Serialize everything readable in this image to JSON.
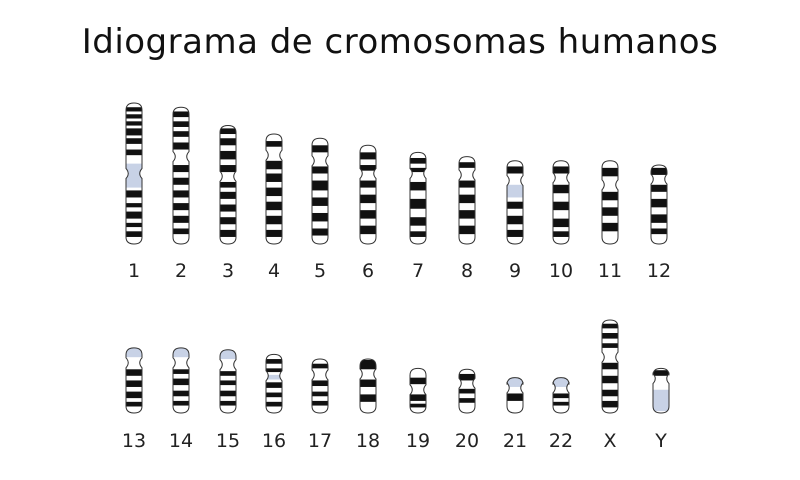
{
  "title": "Idiograma de cromosomas humanos",
  "colors": {
    "band_dark": "#111111",
    "band_light": "#ffffff",
    "centromere_or_stalk": "#c8d2e6",
    "outline": "#333333"
  },
  "chromosomes": [
    {
      "label": "1",
      "row": 0,
      "top": 0,
      "bottom": 1,
      "centromere": 0.5,
      "dark": [
        [
          0.03,
          0.06
        ],
        [
          0.08,
          0.11
        ],
        [
          0.13,
          0.16
        ],
        [
          0.18,
          0.23
        ],
        [
          0.25,
          0.29
        ],
        [
          0.33,
          0.37
        ],
        [
          0.62,
          0.67
        ],
        [
          0.71,
          0.74
        ],
        [
          0.77,
          0.82
        ],
        [
          0.85,
          0.88
        ],
        [
          0.91,
          0.95
        ]
      ],
      "gray": [
        [
          0.43,
          0.6
        ]
      ]
    },
    {
      "label": "2",
      "row": 0,
      "top": 0.03,
      "bottom": 1,
      "centromere": 0.38,
      "dark": [
        [
          0.06,
          0.1
        ],
        [
          0.13,
          0.17
        ],
        [
          0.2,
          0.24
        ],
        [
          0.28,
          0.33
        ],
        [
          0.44,
          0.49
        ],
        [
          0.53,
          0.58
        ],
        [
          0.62,
          0.67
        ],
        [
          0.71,
          0.76
        ],
        [
          0.8,
          0.85
        ],
        [
          0.89,
          0.93
        ]
      ],
      "gray": []
    },
    {
      "label": "3",
      "row": 0,
      "top": 0.16,
      "bottom": 1,
      "centromere": 0.52,
      "dark": [
        [
          0.18,
          0.22
        ],
        [
          0.25,
          0.3
        ],
        [
          0.34,
          0.4
        ],
        [
          0.44,
          0.49
        ],
        [
          0.56,
          0.6
        ],
        [
          0.63,
          0.68
        ],
        [
          0.72,
          0.77
        ],
        [
          0.81,
          0.86
        ],
        [
          0.9,
          0.95
        ]
      ],
      "gray": []
    },
    {
      "label": "4",
      "row": 0,
      "top": 0.22,
      "bottom": 1,
      "centromere": 0.37,
      "dark": [
        [
          0.27,
          0.31
        ],
        [
          0.41,
          0.47
        ],
        [
          0.5,
          0.56
        ],
        [
          0.6,
          0.66
        ],
        [
          0.7,
          0.76
        ],
        [
          0.8,
          0.86
        ],
        [
          0.9,
          0.95
        ]
      ],
      "gray": []
    },
    {
      "label": "5",
      "row": 0,
      "top": 0.25,
      "bottom": 1,
      "centromere": 0.41,
      "dark": [
        [
          0.3,
          0.35
        ],
        [
          0.45,
          0.5
        ],
        [
          0.55,
          0.62
        ],
        [
          0.67,
          0.73
        ],
        [
          0.78,
          0.84
        ],
        [
          0.89,
          0.94
        ]
      ],
      "gray": []
    },
    {
      "label": "6",
      "row": 0,
      "top": 0.3,
      "bottom": 1,
      "centromere": 0.5,
      "dark": [
        [
          0.35,
          0.4
        ],
        [
          0.44,
          0.48
        ],
        [
          0.55,
          0.6
        ],
        [
          0.65,
          0.71
        ],
        [
          0.76,
          0.82
        ],
        [
          0.87,
          0.93
        ]
      ],
      "gray": []
    },
    {
      "label": "7",
      "row": 0,
      "top": 0.35,
      "bottom": 1,
      "centromere": 0.5,
      "dark": [
        [
          0.39,
          0.43
        ],
        [
          0.46,
          0.49
        ],
        [
          0.56,
          0.62
        ],
        [
          0.68,
          0.75
        ],
        [
          0.81,
          0.87
        ],
        [
          0.91,
          0.95
        ]
      ],
      "gray": []
    },
    {
      "label": "8",
      "row": 0,
      "top": 0.38,
      "bottom": 1,
      "centromere": 0.51,
      "dark": [
        [
          0.42,
          0.46
        ],
        [
          0.55,
          0.6
        ],
        [
          0.65,
          0.71
        ],
        [
          0.76,
          0.82
        ],
        [
          0.87,
          0.93
        ]
      ],
      "gray": []
    },
    {
      "label": "9",
      "row": 0,
      "top": 0.41,
      "bottom": 1,
      "centromere": 0.55,
      "dark": [
        [
          0.45,
          0.5
        ],
        [
          0.7,
          0.75
        ],
        [
          0.8,
          0.86
        ],
        [
          0.9,
          0.95
        ]
      ],
      "gray": [
        [
          0.58,
          0.67
        ]
      ]
    },
    {
      "label": "10",
      "row": 0,
      "top": 0.41,
      "bottom": 1,
      "centromere": 0.53,
      "dark": [
        [
          0.45,
          0.5
        ],
        [
          0.58,
          0.64
        ],
        [
          0.7,
          0.76
        ],
        [
          0.82,
          0.88
        ],
        [
          0.91,
          0.95
        ]
      ],
      "gray": []
    },
    {
      "label": "11",
      "row": 0,
      "top": 0.41,
      "bottom": 1,
      "centromere": 0.58,
      "dark": [
        [
          0.46,
          0.52
        ],
        [
          0.63,
          0.69
        ],
        [
          0.74,
          0.8
        ],
        [
          0.85,
          0.91
        ]
      ],
      "gray": []
    },
    {
      "label": "12",
      "row": 0,
      "top": 0.44,
      "bottom": 1,
      "centromere": 0.54,
      "dark": [
        [
          0.46,
          0.51
        ],
        [
          0.58,
          0.63
        ],
        [
          0.68,
          0.74
        ],
        [
          0.79,
          0.85
        ],
        [
          0.89,
          0.93
        ]
      ],
      "gray": []
    },
    {
      "label": "13",
      "row": 1,
      "top": 0.3,
      "bottom": 1,
      "centromere": 0.46,
      "stalk": true,
      "dark": [
        [
          0.53,
          0.6
        ],
        [
          0.65,
          0.72
        ],
        [
          0.77,
          0.84
        ],
        [
          0.88,
          0.93
        ]
      ],
      "gray": [
        [
          0.3,
          0.4
        ]
      ]
    },
    {
      "label": "14",
      "row": 1,
      "top": 0.3,
      "bottom": 1,
      "centromere": 0.46,
      "stalk": true,
      "dark": [
        [
          0.53,
          0.58
        ],
        [
          0.63,
          0.7
        ],
        [
          0.76,
          0.82
        ],
        [
          0.87,
          0.92
        ]
      ],
      "gray": [
        [
          0.3,
          0.4
        ]
      ]
    },
    {
      "label": "15",
      "row": 1,
      "top": 0.32,
      "bottom": 1,
      "centromere": 0.48,
      "stalk": true,
      "dark": [
        [
          0.55,
          0.6
        ],
        [
          0.65,
          0.7
        ],
        [
          0.76,
          0.82
        ],
        [
          0.87,
          0.92
        ]
      ],
      "gray": [
        [
          0.32,
          0.42
        ]
      ]
    },
    {
      "label": "16",
      "row": 1,
      "top": 0.37,
      "bottom": 1,
      "centromere": 0.6,
      "dark": [
        [
          0.42,
          0.47
        ],
        [
          0.52,
          0.56
        ],
        [
          0.67,
          0.73
        ],
        [
          0.78,
          0.83
        ],
        [
          0.88,
          0.93
        ]
      ],
      "gray": [
        [
          0.59,
          0.64
        ]
      ]
    },
    {
      "label": "17",
      "row": 1,
      "top": 0.42,
      "bottom": 1,
      "centromere": 0.59,
      "dark": [
        [
          0.47,
          0.52
        ],
        [
          0.65,
          0.71
        ],
        [
          0.77,
          0.82
        ],
        [
          0.87,
          0.92
        ]
      ],
      "gray": []
    },
    {
      "label": "18",
      "row": 1,
      "top": 0.42,
      "bottom": 1,
      "centromere": 0.58,
      "dark": [
        [
          0.43,
          0.53
        ],
        [
          0.64,
          0.72
        ],
        [
          0.8,
          0.88
        ]
      ],
      "gray": []
    },
    {
      "label": "19",
      "row": 1,
      "top": 0.52,
      "bottom": 1,
      "centromere": 0.75,
      "dark": [
        [
          0.62,
          0.69
        ],
        [
          0.8,
          0.87
        ],
        [
          0.9,
          0.94
        ]
      ],
      "gray": []
    },
    {
      "label": "20",
      "row": 1,
      "top": 0.53,
      "bottom": 1,
      "centromere": 0.68,
      "dark": [
        [
          0.58,
          0.65
        ],
        [
          0.74,
          0.79
        ],
        [
          0.84,
          0.89
        ]
      ],
      "gray": []
    },
    {
      "label": "21",
      "row": 1,
      "top": 0.62,
      "bottom": 1,
      "centromere": 0.73,
      "stalk": true,
      "dark": [
        [
          0.79,
          0.87
        ]
      ],
      "gray": [
        [
          0.62,
          0.72
        ]
      ]
    },
    {
      "label": "22",
      "row": 1,
      "top": 0.62,
      "bottom": 1,
      "centromere": 0.73,
      "stalk": true,
      "dark": [
        [
          0.79,
          0.84
        ],
        [
          0.88,
          0.92
        ]
      ],
      "gray": [
        [
          0.62,
          0.72
        ]
      ]
    },
    {
      "label": "X",
      "row": 1,
      "top": 0,
      "bottom": 1,
      "centromere": 0.4,
      "dark": [
        [
          0.04,
          0.09
        ],
        [
          0.14,
          0.2
        ],
        [
          0.25,
          0.3
        ],
        [
          0.46,
          0.53
        ],
        [
          0.6,
          0.68
        ],
        [
          0.75,
          0.82
        ],
        [
          0.87,
          0.94
        ]
      ],
      "gray": []
    },
    {
      "label": "Y",
      "row": 1,
      "top": 0.52,
      "bottom": 1,
      "centromere": 0.63,
      "dark": [
        [
          0.54,
          0.6
        ]
      ],
      "gray": [
        [
          0.75,
          0.98
        ]
      ]
    }
  ]
}
